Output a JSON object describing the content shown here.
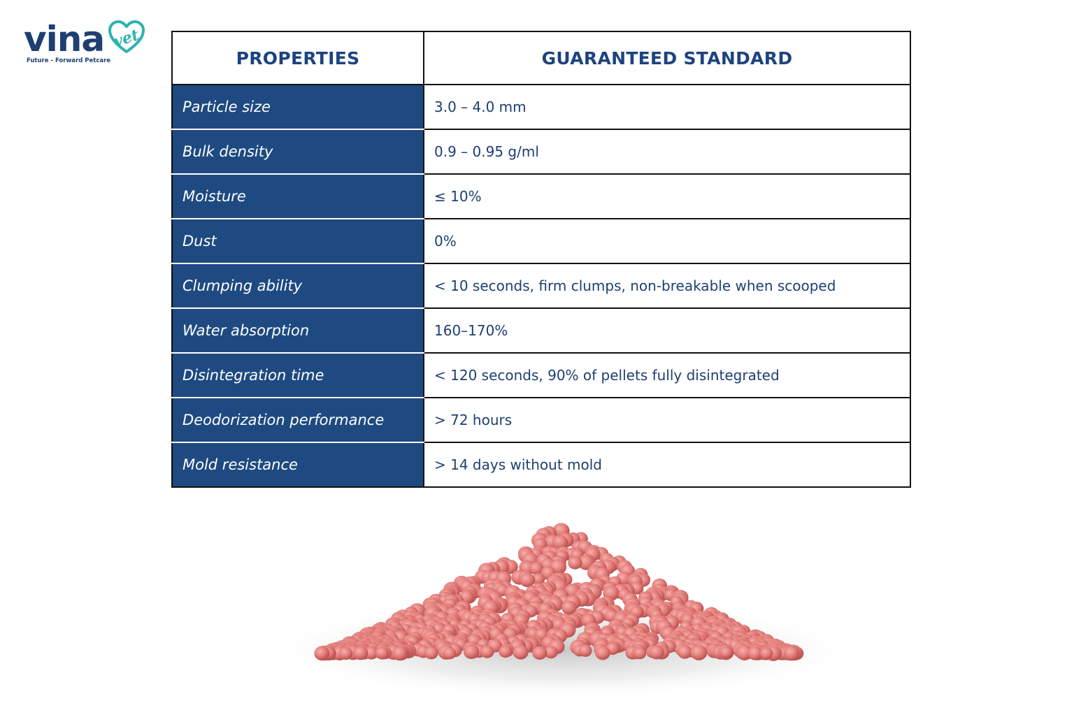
{
  "logo": {
    "wordmark": "vina",
    "accent": "vet",
    "tagline": "Future - Forward Petcare"
  },
  "colors": {
    "brand_navy": "#1d3f72",
    "brand_teal": "#2bb3ad",
    "property_column_bg": "#1e4a81",
    "header_text": "#1d4380",
    "pellet": "#e07c7c"
  },
  "table": {
    "headers": {
      "properties": "PROPERTIES",
      "standard": "GUARANTEED STANDARD"
    },
    "rows": [
      {
        "property": "Particle size",
        "standard": "3.0 – 4.0 mm"
      },
      {
        "property": "Bulk density",
        "standard": "0.9 – 0.95 g/ml"
      },
      {
        "property": "Moisture",
        "standard": "≤ 10%"
      },
      {
        "property": "Dust",
        "standard": "0%"
      },
      {
        "property": "Clumping ability",
        "standard": "< 10 seconds, firm clumps, non-breakable when scooped"
      },
      {
        "property": "Water absorption",
        "standard": "160–170%"
      },
      {
        "property": "Disintegration time",
        "standard": "< 120 seconds, 90% of pellets fully disintegrated"
      },
      {
        "property": "Deodorization performance",
        "standard": "> 72 hours"
      },
      {
        "property": "Mold resistance",
        "standard": "> 14 days without mold"
      }
    ]
  }
}
